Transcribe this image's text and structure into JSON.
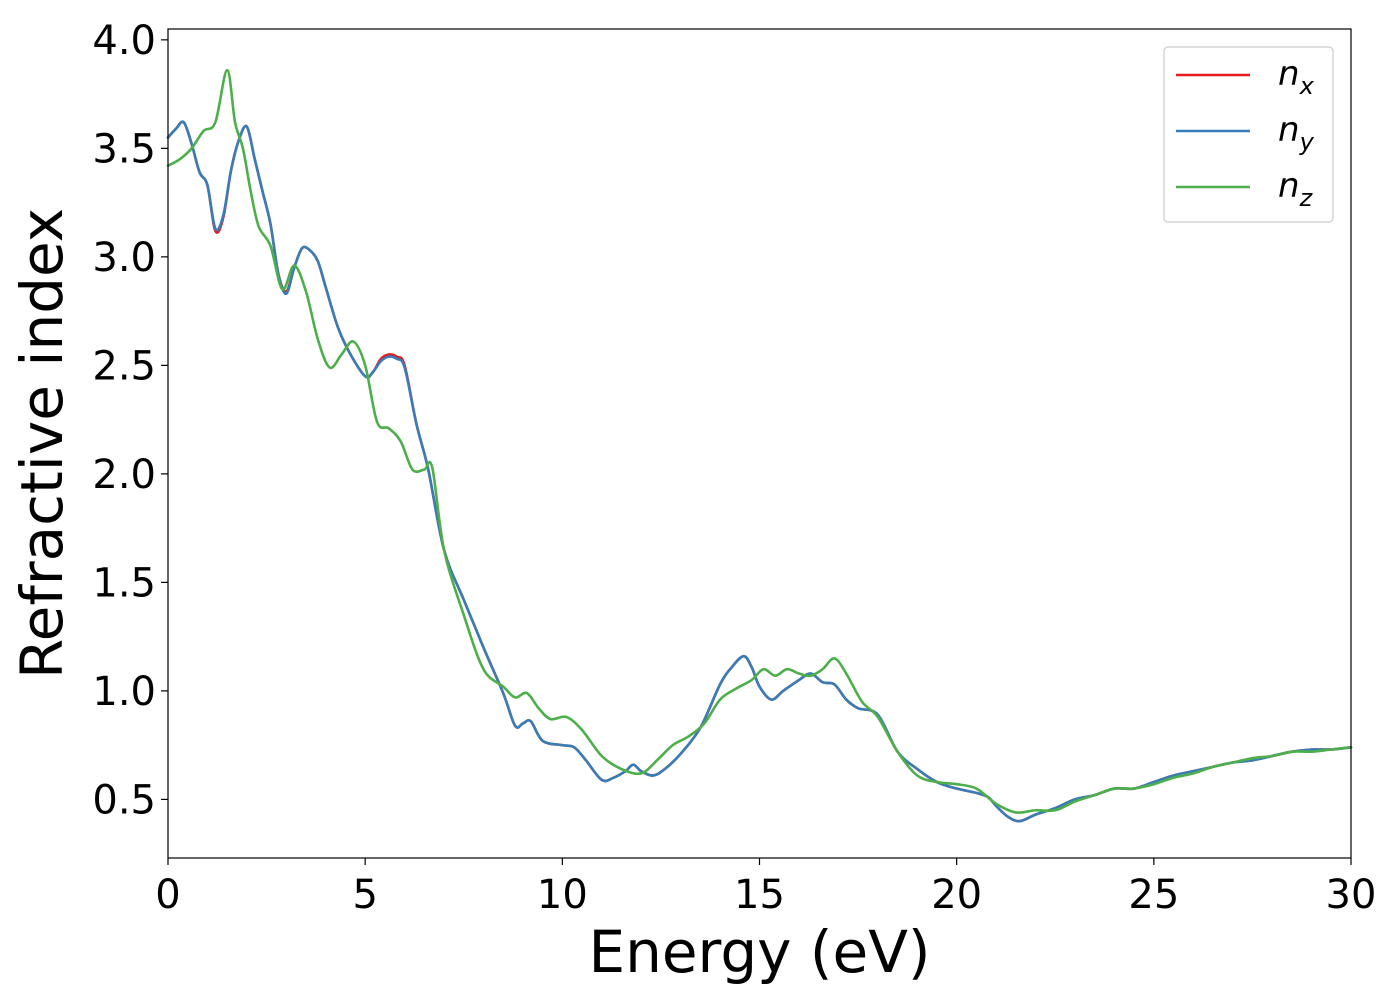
{
  "chart_data": {
    "type": "line",
    "xlabel": "Energy (eV)",
    "ylabel": "Refractive index",
    "xlim": [
      0,
      30
    ],
    "ylim": [
      0.23,
      4.05
    ],
    "xticks": [
      0,
      5,
      10,
      15,
      20,
      25,
      30
    ],
    "xtick_labels": [
      "0",
      "5",
      "10",
      "15",
      "20",
      "25",
      "30"
    ],
    "yticks": [
      0.5,
      1.0,
      1.5,
      2.0,
      2.5,
      3.0,
      3.5,
      4.0
    ],
    "ytick_labels": [
      "0.5",
      "1.0",
      "1.5",
      "2.0",
      "2.5",
      "3.0",
      "3.5",
      "4.0"
    ],
    "grid": false,
    "legend_position": "top-right",
    "series": [
      {
        "name": "n_x",
        "label_base": "n",
        "label_sub": "x",
        "color": "#e41a1c",
        "x": [
          0,
          0.2,
          0.4,
          0.6,
          0.8,
          1.0,
          1.2,
          1.4,
          1.6,
          1.8,
          2.0,
          2.2,
          2.4,
          2.6,
          2.8,
          3.0,
          3.2,
          3.4,
          3.6,
          3.8,
          4.0,
          4.3,
          4.6,
          5.0,
          5.2,
          5.4,
          5.6,
          5.8,
          6.0,
          6.3,
          6.6,
          7.0,
          7.5,
          8.0,
          8.5,
          8.8,
          9.0,
          9.2,
          9.5,
          10.0,
          10.3,
          10.6,
          11.0,
          11.3,
          11.6,
          11.8,
          12.0,
          12.3,
          12.6,
          13.0,
          13.5,
          14.0,
          14.3,
          14.6,
          14.8,
          15.0,
          15.3,
          15.6,
          16.0,
          16.3,
          16.6,
          16.9,
          17.2,
          17.5,
          18.0,
          18.5,
          19.0,
          19.5,
          20.0,
          20.5,
          20.8,
          21.0,
          21.3,
          21.6,
          22.0,
          22.5,
          23.0,
          23.5,
          24.0,
          24.5,
          25.0,
          25.5,
          26.0,
          26.5,
          27.0,
          27.5,
          28.0,
          28.5,
          29.0,
          29.5,
          30.0
        ],
        "y": [
          3.55,
          3.59,
          3.62,
          3.52,
          3.39,
          3.33,
          3.12,
          3.18,
          3.4,
          3.54,
          3.6,
          3.45,
          3.3,
          3.15,
          2.92,
          2.84,
          2.95,
          3.04,
          3.03,
          2.98,
          2.86,
          2.68,
          2.56,
          2.45,
          2.47,
          2.53,
          2.55,
          2.54,
          2.5,
          2.23,
          2.02,
          1.65,
          1.42,
          1.2,
          0.99,
          0.84,
          0.85,
          0.86,
          0.77,
          0.75,
          0.74,
          0.68,
          0.59,
          0.6,
          0.63,
          0.66,
          0.63,
          0.61,
          0.64,
          0.71,
          0.83,
          1.03,
          1.11,
          1.16,
          1.11,
          1.02,
          0.96,
          1.0,
          1.05,
          1.08,
          1.04,
          1.03,
          0.96,
          0.92,
          0.89,
          0.72,
          0.64,
          0.58,
          0.55,
          0.53,
          0.51,
          0.47,
          0.42,
          0.4,
          0.43,
          0.46,
          0.5,
          0.52,
          0.55,
          0.55,
          0.58,
          0.61,
          0.63,
          0.65,
          0.67,
          0.68,
          0.7,
          0.72,
          0.73,
          0.73,
          0.74
        ]
      },
      {
        "name": "n_y",
        "label_base": "n",
        "label_sub": "y",
        "color": "#377eb8",
        "x": [
          0,
          0.2,
          0.4,
          0.6,
          0.8,
          1.0,
          1.2,
          1.4,
          1.6,
          1.8,
          2.0,
          2.2,
          2.4,
          2.6,
          2.8,
          3.0,
          3.2,
          3.4,
          3.6,
          3.8,
          4.0,
          4.3,
          4.6,
          5.0,
          5.2,
          5.4,
          5.6,
          5.8,
          6.0,
          6.3,
          6.6,
          7.0,
          7.5,
          8.0,
          8.5,
          8.8,
          9.0,
          9.2,
          9.5,
          10.0,
          10.3,
          10.6,
          11.0,
          11.3,
          11.6,
          11.8,
          12.0,
          12.3,
          12.6,
          13.0,
          13.5,
          14.0,
          14.3,
          14.6,
          14.8,
          15.0,
          15.3,
          15.6,
          16.0,
          16.3,
          16.6,
          16.9,
          17.2,
          17.5,
          18.0,
          18.5,
          19.0,
          19.5,
          20.0,
          20.5,
          20.8,
          21.0,
          21.3,
          21.6,
          22.0,
          22.5,
          23.0,
          23.5,
          24.0,
          24.5,
          25.0,
          25.5,
          26.0,
          26.5,
          27.0,
          27.5,
          28.0,
          28.5,
          29.0,
          29.5,
          30.0
        ],
        "y": [
          3.55,
          3.59,
          3.62,
          3.52,
          3.39,
          3.33,
          3.13,
          3.19,
          3.4,
          3.54,
          3.6,
          3.45,
          3.3,
          3.15,
          2.92,
          2.83,
          2.95,
          3.04,
          3.03,
          2.98,
          2.86,
          2.68,
          2.56,
          2.45,
          2.47,
          2.52,
          2.54,
          2.53,
          2.49,
          2.23,
          2.02,
          1.65,
          1.42,
          1.2,
          0.99,
          0.84,
          0.85,
          0.86,
          0.77,
          0.75,
          0.74,
          0.68,
          0.59,
          0.6,
          0.63,
          0.66,
          0.63,
          0.61,
          0.64,
          0.71,
          0.83,
          1.03,
          1.11,
          1.16,
          1.11,
          1.02,
          0.96,
          1.0,
          1.05,
          1.08,
          1.04,
          1.03,
          0.96,
          0.92,
          0.89,
          0.72,
          0.64,
          0.58,
          0.55,
          0.53,
          0.51,
          0.47,
          0.42,
          0.4,
          0.43,
          0.46,
          0.5,
          0.52,
          0.55,
          0.55,
          0.58,
          0.61,
          0.63,
          0.65,
          0.67,
          0.68,
          0.7,
          0.72,
          0.73,
          0.73,
          0.74
        ]
      },
      {
        "name": "n_z",
        "label_base": "n",
        "label_sub": "z",
        "color": "#4daf4a",
        "x": [
          0,
          0.3,
          0.6,
          0.9,
          1.2,
          1.5,
          1.7,
          1.9,
          2.1,
          2.3,
          2.6,
          2.9,
          3.2,
          3.5,
          3.8,
          4.1,
          4.4,
          4.7,
          5.0,
          5.3,
          5.6,
          5.9,
          6.2,
          6.5,
          6.7,
          7.0,
          7.5,
          8.0,
          8.5,
          8.8,
          9.1,
          9.4,
          9.7,
          10.1,
          10.5,
          11.0,
          11.5,
          12.0,
          12.4,
          12.8,
          13.2,
          13.6,
          14.0,
          14.4,
          14.8,
          15.1,
          15.4,
          15.7,
          16.0,
          16.3,
          16.6,
          16.9,
          17.2,
          17.6,
          18.0,
          18.5,
          19.0,
          19.5,
          20.0,
          20.5,
          21.0,
          21.5,
          22.0,
          22.5,
          23.0,
          23.5,
          24.0,
          24.5,
          25.0,
          25.5,
          26.0,
          26.5,
          27.0,
          27.5,
          28.0,
          28.5,
          29.0,
          29.5,
          30.0
        ],
        "y": [
          3.42,
          3.45,
          3.5,
          3.58,
          3.62,
          3.86,
          3.62,
          3.5,
          3.3,
          3.14,
          3.05,
          2.85,
          2.96,
          2.84,
          2.62,
          2.49,
          2.55,
          2.61,
          2.5,
          2.24,
          2.21,
          2.15,
          2.02,
          2.02,
          2.03,
          1.65,
          1.35,
          1.1,
          1.02,
          0.97,
          0.99,
          0.92,
          0.87,
          0.88,
          0.82,
          0.7,
          0.64,
          0.62,
          0.68,
          0.75,
          0.79,
          0.85,
          0.96,
          1.01,
          1.05,
          1.1,
          1.07,
          1.1,
          1.08,
          1.07,
          1.1,
          1.15,
          1.08,
          0.95,
          0.88,
          0.72,
          0.61,
          0.58,
          0.57,
          0.55,
          0.48,
          0.44,
          0.45,
          0.45,
          0.49,
          0.52,
          0.55,
          0.55,
          0.57,
          0.6,
          0.62,
          0.65,
          0.67,
          0.69,
          0.7,
          0.72,
          0.72,
          0.73,
          0.74
        ]
      }
    ]
  }
}
